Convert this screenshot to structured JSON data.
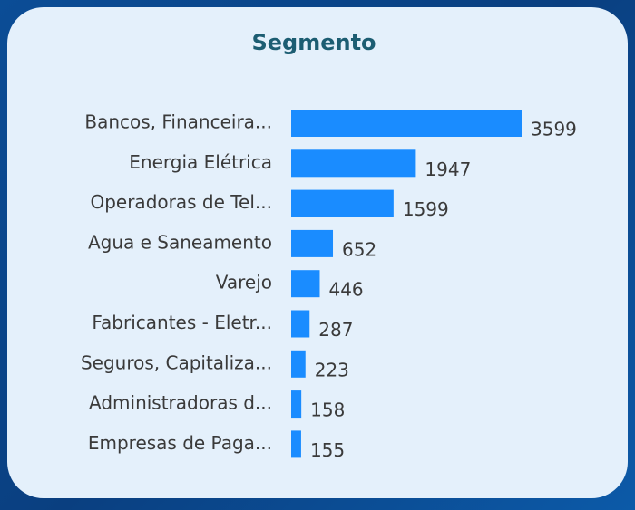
{
  "chart_data": {
    "type": "bar",
    "orientation": "horizontal",
    "title": "Segmento",
    "categories": [
      "Bancos, Financeira...",
      "Energia Elétrica",
      "Operadoras de Tel...",
      "Agua e Saneamento",
      "Varejo",
      "Fabricantes - Eletr...",
      "Seguros, Capitaliza...",
      "Administradoras d...",
      "Empresas de Paga..."
    ],
    "values": [
      3599,
      1947,
      1599,
      652,
      446,
      287,
      223,
      158,
      155
    ],
    "color": "#1a8cff"
  }
}
